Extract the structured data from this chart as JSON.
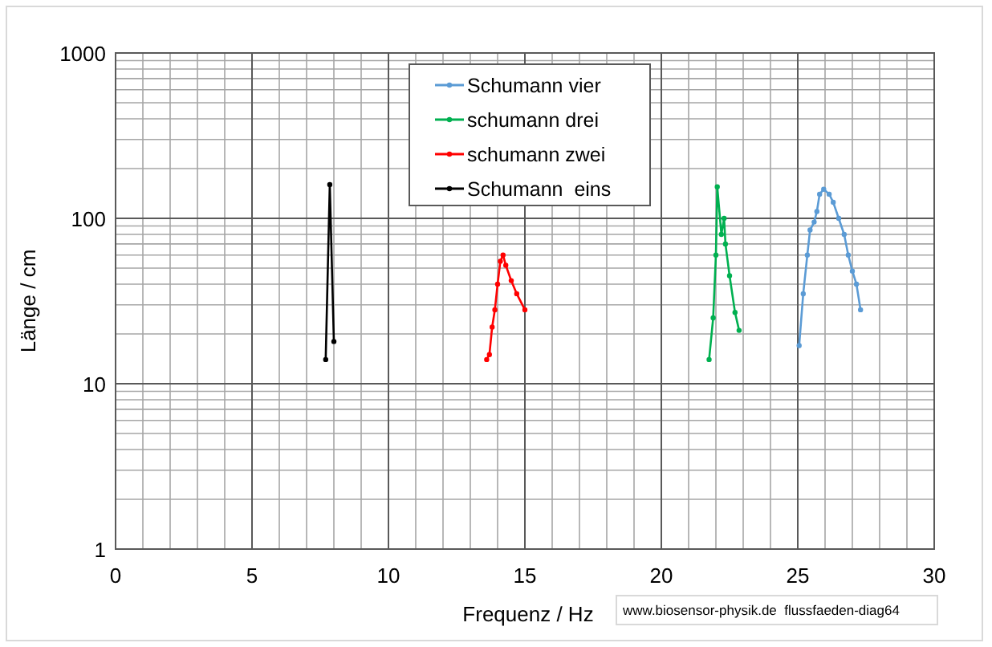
{
  "chart_data": {
    "type": "line",
    "xlabel": "Frequenz / Hz",
    "ylabel": "Länge / cm",
    "log": "y",
    "xlim": [
      0,
      30
    ],
    "xticks": [
      0,
      5,
      10,
      15,
      20,
      25,
      30
    ],
    "ylim": [
      1,
      1000
    ],
    "yticks": [
      1,
      10,
      100,
      1000
    ],
    "grid": true,
    "legend": "top",
    "marker": "circle",
    "line_style": "solid",
    "annotations": [
      "www.biosensor-physik.de  flussfaeden-diag64"
    ],
    "series": [
      {
        "name": "Schumann vier",
        "color": "#5b9bd5",
        "x": [
          25.05,
          25.2,
          25.35,
          25.45,
          25.6,
          25.7,
          25.8,
          25.95,
          26.15,
          26.3,
          26.5,
          26.7,
          26.85,
          27.0,
          27.15,
          27.3
        ],
        "values": [
          17,
          35,
          60,
          85,
          95,
          110,
          140,
          150,
          140,
          125,
          100,
          80,
          60,
          48,
          40,
          28
        ]
      },
      {
        "name": "schumann drei",
        "color": "#00b050",
        "x": [
          21.75,
          21.9,
          22.0,
          22.05,
          22.2,
          22.3,
          22.35,
          22.5,
          22.7,
          22.85
        ],
        "values": [
          14,
          25,
          60,
          155,
          80,
          100,
          70,
          45,
          27,
          21
        ]
      },
      {
        "name": "schumann zwei",
        "color": "#ff0000",
        "x": [
          13.6,
          13.7,
          13.8,
          13.9,
          14.0,
          14.1,
          14.2,
          14.3,
          14.5,
          14.7,
          15.0
        ],
        "values": [
          14,
          15,
          22,
          28,
          40,
          55,
          60,
          52,
          42,
          35,
          28
        ]
      },
      {
        "name": "Schumann  eins",
        "color": "#000000",
        "x": [
          7.7,
          7.85,
          8.0
        ],
        "values": [
          14,
          160,
          18
        ]
      }
    ]
  }
}
